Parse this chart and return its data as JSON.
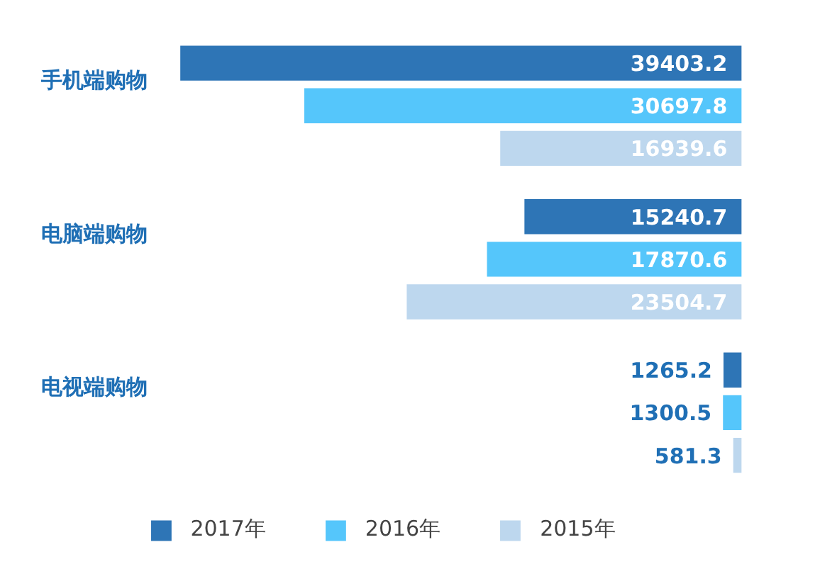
{
  "chart_data": {
    "type": "bar",
    "orientation": "horizontal",
    "categories": [
      "手机端购物",
      "电脑端购物",
      "电视端购物"
    ],
    "series": [
      {
        "name": "2017年",
        "color": "#2e75b6",
        "values": [
          39403.2,
          15240.7,
          1265.2
        ]
      },
      {
        "name": "2016年",
        "color": "#55c6fb",
        "values": [
          30697.8,
          17870.6,
          1300.5
        ]
      },
      {
        "name": "2015年",
        "color": "#bdd7ee",
        "values": [
          16939.6,
          23504.7,
          581.3
        ]
      }
    ],
    "data_labels": true,
    "legend": "bottom"
  }
}
